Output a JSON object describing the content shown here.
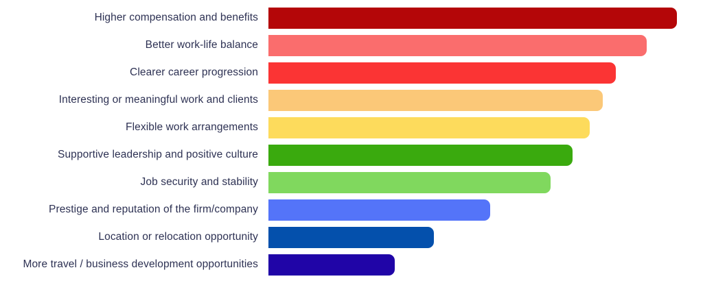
{
  "chart_data": {
    "type": "bar",
    "orientation": "horizontal",
    "title": "",
    "xlabel": "",
    "ylabel": "",
    "xlim": [
      0,
      100
    ],
    "grid": false,
    "legend": false,
    "axis_labels_visible": false,
    "value_note": "No numeric axis or data labels are shown in the image; values are relative bar lengths estimated from pixels (longest bar ≈ 94% of plot width).",
    "categories": [
      "Higher compensation and benefits",
      "Better work-life balance",
      "Clearer career progression",
      "Interesting or meaningful work and clients",
      "Flexible work arrangements",
      "Supportive leadership and positive culture",
      "Job security and stability",
      "Prestige and reputation of the firm/company",
      "Location or relocation opportunity",
      "More travel / business development opportunities"
    ],
    "values": [
      94,
      87,
      80,
      77,
      74,
      70,
      65,
      51,
      38,
      29
    ],
    "bar_colors": [
      "#b40608",
      "#fa6d6d",
      "#fb3434",
      "#fbc878",
      "#fddb5c",
      "#3aaa0e",
      "#80d85e",
      "#5474f9",
      "#0450ac",
      "#2005a7"
    ],
    "label_color": "#2d3153",
    "background_color": "#ffffff"
  }
}
